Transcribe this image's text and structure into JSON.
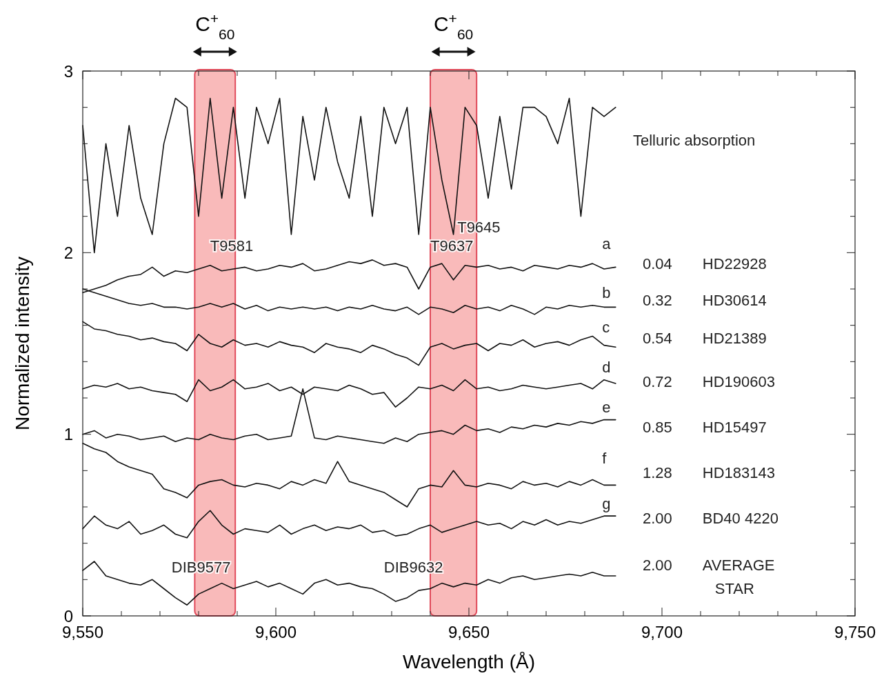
{
  "chart_data": {
    "type": "line",
    "xlabel": "Wavelength (Å)",
    "ylabel": "Normalized intensity",
    "x": [
      9550,
      9553,
      9556,
      9559,
      9562,
      9565,
      9568,
      9571,
      9574,
      9577,
      9580,
      9583,
      9586,
      9589,
      9592,
      9595,
      9598,
      9601,
      9604,
      9607,
      9610,
      9613,
      9616,
      9619,
      9622,
      9625,
      9628,
      9631,
      9634,
      9637,
      9640,
      9643,
      9646,
      9649,
      9652,
      9655,
      9658,
      9661,
      9664,
      9667,
      9670,
      9673,
      9676,
      9679,
      9682,
      9685,
      9688
    ],
    "series": [
      {
        "color": "#111111",
        "values": [
          2.7,
          2.0,
          2.6,
          2.2,
          2.7,
          2.3,
          2.1,
          2.6,
          2.85,
          2.8,
          2.2,
          2.85,
          2.3,
          2.8,
          2.3,
          2.8,
          2.6,
          2.85,
          2.1,
          2.75,
          2.4,
          2.8,
          2.5,
          2.3,
          2.75,
          2.2,
          2.8,
          2.6,
          2.8,
          2.1,
          2.8,
          2.4,
          2.1,
          2.8,
          2.7,
          2.3,
          2.75,
          2.35,
          2.8,
          2.8,
          2.75,
          2.6,
          2.85,
          2.2,
          2.8,
          2.75,
          2.8
        ]
      },
      {
        "color": "#111111",
        "values": [
          1.78,
          1.8,
          1.82,
          1.85,
          1.87,
          1.88,
          1.92,
          1.87,
          1.9,
          1.89,
          1.91,
          1.93,
          1.9,
          1.91,
          1.92,
          1.9,
          1.91,
          1.93,
          1.92,
          1.94,
          1.9,
          1.91,
          1.93,
          1.95,
          1.94,
          1.96,
          1.93,
          1.94,
          1.92,
          1.8,
          1.92,
          1.94,
          1.85,
          1.93,
          1.92,
          1.93,
          1.91,
          1.92,
          1.9,
          1.93,
          1.92,
          1.91,
          1.93,
          1.92,
          1.94,
          1.91,
          1.92
        ]
      },
      {
        "color": "#111111",
        "values": [
          1.8,
          1.78,
          1.76,
          1.74,
          1.72,
          1.71,
          1.72,
          1.7,
          1.7,
          1.69,
          1.7,
          1.72,
          1.7,
          1.72,
          1.69,
          1.71,
          1.68,
          1.7,
          1.69,
          1.7,
          1.69,
          1.7,
          1.68,
          1.7,
          1.69,
          1.71,
          1.69,
          1.68,
          1.7,
          1.66,
          1.7,
          1.69,
          1.67,
          1.71,
          1.69,
          1.7,
          1.68,
          1.71,
          1.69,
          1.66,
          1.7,
          1.69,
          1.71,
          1.7,
          1.71,
          1.7,
          1.7
        ]
      },
      {
        "color": "#111111",
        "values": [
          1.62,
          1.58,
          1.57,
          1.55,
          1.54,
          1.52,
          1.53,
          1.51,
          1.5,
          1.46,
          1.55,
          1.5,
          1.48,
          1.52,
          1.49,
          1.5,
          1.48,
          1.51,
          1.49,
          1.48,
          1.45,
          1.5,
          1.48,
          1.47,
          1.45,
          1.49,
          1.47,
          1.44,
          1.42,
          1.38,
          1.48,
          1.5,
          1.47,
          1.49,
          1.5,
          1.46,
          1.5,
          1.49,
          1.52,
          1.48,
          1.5,
          1.51,
          1.49,
          1.52,
          1.54,
          1.49,
          1.48
        ]
      },
      {
        "color": "#111111",
        "values": [
          1.25,
          1.27,
          1.26,
          1.28,
          1.25,
          1.26,
          1.24,
          1.23,
          1.22,
          1.18,
          1.3,
          1.24,
          1.26,
          1.3,
          1.25,
          1.26,
          1.28,
          1.24,
          1.26,
          1.22,
          1.26,
          1.25,
          1.24,
          1.27,
          1.25,
          1.22,
          1.23,
          1.15,
          1.2,
          1.26,
          1.25,
          1.27,
          1.24,
          1.3,
          1.25,
          1.26,
          1.24,
          1.25,
          1.27,
          1.26,
          1.25,
          1.26,
          1.27,
          1.28,
          1.25,
          1.3,
          1.28
        ]
      },
      {
        "color": "#111111",
        "values": [
          1.0,
          1.02,
          0.98,
          1.0,
          0.99,
          0.97,
          0.98,
          0.99,
          0.96,
          0.98,
          0.97,
          1.0,
          0.98,
          0.97,
          0.99,
          1.0,
          0.97,
          0.98,
          0.99,
          1.25,
          0.98,
          0.97,
          0.99,
          0.98,
          0.97,
          0.96,
          0.95,
          0.98,
          0.96,
          1.0,
          1.01,
          1.02,
          1.0,
          1.05,
          1.02,
          1.03,
          1.01,
          1.04,
          1.03,
          1.05,
          1.04,
          1.06,
          1.05,
          1.07,
          1.06,
          1.08,
          1.08
        ]
      },
      {
        "color": "#111111",
        "values": [
          0.95,
          0.92,
          0.9,
          0.85,
          0.82,
          0.8,
          0.78,
          0.7,
          0.68,
          0.65,
          0.72,
          0.74,
          0.75,
          0.72,
          0.71,
          0.73,
          0.72,
          0.7,
          0.74,
          0.72,
          0.75,
          0.73,
          0.85,
          0.74,
          0.72,
          0.7,
          0.68,
          0.64,
          0.6,
          0.7,
          0.72,
          0.71,
          0.8,
          0.72,
          0.71,
          0.73,
          0.72,
          0.7,
          0.74,
          0.72,
          0.73,
          0.71,
          0.74,
          0.72,
          0.75,
          0.72,
          0.72
        ]
      },
      {
        "color": "#111111",
        "values": [
          0.48,
          0.55,
          0.5,
          0.48,
          0.52,
          0.45,
          0.47,
          0.5,
          0.45,
          0.43,
          0.52,
          0.58,
          0.5,
          0.45,
          0.48,
          0.47,
          0.46,
          0.5,
          0.45,
          0.48,
          0.5,
          0.47,
          0.49,
          0.48,
          0.5,
          0.46,
          0.47,
          0.44,
          0.45,
          0.48,
          0.5,
          0.46,
          0.48,
          0.5,
          0.52,
          0.5,
          0.51,
          0.48,
          0.52,
          0.5,
          0.53,
          0.5,
          0.52,
          0.51,
          0.53,
          0.55,
          0.55
        ]
      },
      {
        "color": "#111111",
        "values": [
          0.25,
          0.3,
          0.22,
          0.2,
          0.18,
          0.17,
          0.2,
          0.15,
          0.1,
          0.06,
          0.12,
          0.15,
          0.18,
          0.15,
          0.17,
          0.19,
          0.16,
          0.18,
          0.15,
          0.12,
          0.18,
          0.2,
          0.17,
          0.18,
          0.16,
          0.15,
          0.12,
          0.08,
          0.1,
          0.14,
          0.15,
          0.18,
          0.16,
          0.18,
          0.17,
          0.2,
          0.18,
          0.21,
          0.22,
          0.2,
          0.21,
          0.22,
          0.23,
          0.22,
          0.24,
          0.22,
          0.22
        ]
      }
    ],
    "xlim": [
      9550,
      9750
    ],
    "xticks": [
      {
        "value": 9550,
        "label": "9,550"
      },
      {
        "value": 9560,
        "label": null
      },
      {
        "value": 9570,
        "label": null
      },
      {
        "value": 9580,
        "label": null
      },
      {
        "value": 9590,
        "label": null
      },
      {
        "value": 9600,
        "label": "9,600"
      },
      {
        "value": 9610,
        "label": null
      },
      {
        "value": 9620,
        "label": null
      },
      {
        "value": 9630,
        "label": null
      },
      {
        "value": 9640,
        "label": null
      },
      {
        "value": 9650,
        "label": "9,650"
      },
      {
        "value": 9660,
        "label": null
      },
      {
        "value": 9670,
        "label": null
      },
      {
        "value": 9680,
        "label": null
      },
      {
        "value": 9690,
        "label": null
      },
      {
        "value": 9700,
        "label": "9,700"
      },
      {
        "value": 9710,
        "label": null
      },
      {
        "value": 9720,
        "label": null
      },
      {
        "value": 9730,
        "label": null
      },
      {
        "value": 9740,
        "label": null
      },
      {
        "value": 9750,
        "label": "9,750"
      }
    ],
    "ylim": [
      0,
      3
    ],
    "yticks": [
      0,
      {
        "value": 0.2,
        "label": null
      },
      {
        "value": 0.4,
        "label": null
      },
      {
        "value": 0.6,
        "label": null
      },
      {
        "value": 0.8,
        "label": null
      },
      1,
      {
        "value": 1.2,
        "label": null
      },
      {
        "value": 1.4,
        "label": null
      },
      {
        "value": 1.6,
        "label": null
      },
      {
        "value": 1.8,
        "label": null
      },
      2,
      {
        "value": 2.2,
        "label": null
      },
      {
        "value": 2.4,
        "label": null
      },
      {
        "value": 2.6,
        "label": null
      },
      {
        "value": 2.8,
        "label": null
      },
      3
    ],
    "grid": false,
    "marker": "none",
    "line_style": "solid",
    "bands": [
      {
        "axis": "x",
        "from": 9579,
        "to": 9589.5,
        "label": "C$^{+}$$_{60}$",
        "color": "#f7a3a3"
      },
      {
        "axis": "x",
        "from": 9640,
        "to": 9652,
        "label": "C$^{+}$$_{60}$",
        "color": "#f7a3a3"
      }
    ],
    "annotations": [
      "Telluric absorption",
      "T9581",
      "T9637",
      "T9645",
      "DIB9577",
      "DIB9632",
      "a",
      "b",
      "c",
      "d",
      "e",
      "f",
      "g",
      "0.04",
      "0.32",
      "0.54",
      "0.72",
      "0.85",
      "1.28",
      "2.00",
      "2.00",
      "HD22928",
      "HD30614",
      "HD21389",
      "HD190603",
      "HD15497",
      "HD183143",
      "BD40 4220",
      "AVERAGE\nSTAR"
    ]
  }
}
